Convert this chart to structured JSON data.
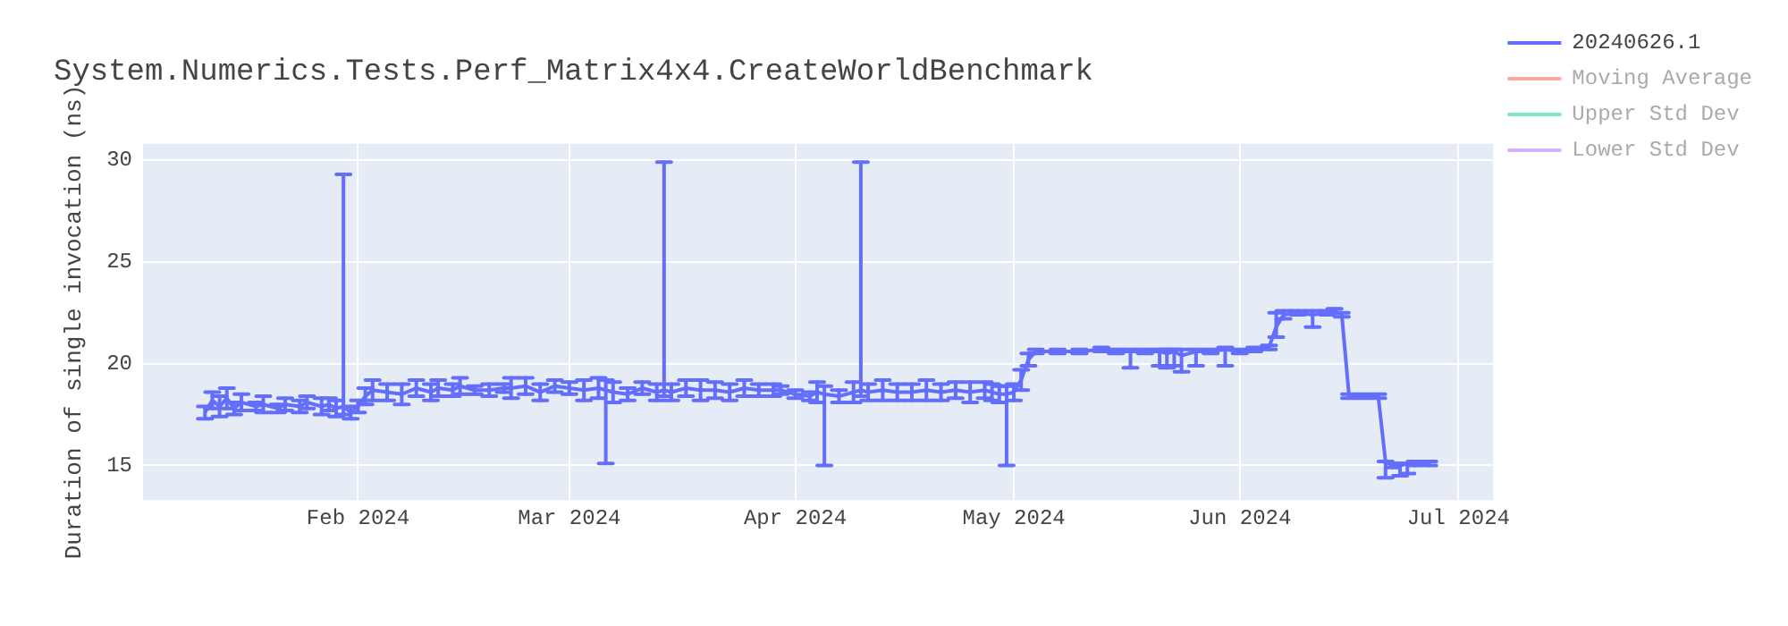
{
  "chart_data": {
    "type": "line",
    "title": "System.Numerics.Tests.Perf_Matrix4x4.CreateWorldBenchmark",
    "ylabel": "Duration of single invocation (ns)",
    "xlim": [
      "2024-01-02T12:00",
      "2024-07-05T19:00"
    ],
    "ylim": [
      13.3,
      30.8
    ],
    "yticks": [
      15,
      20,
      25,
      30
    ],
    "xticks": [
      {
        "value": "2024-02-01",
        "label": "Feb 2024"
      },
      {
        "value": "2024-03-01",
        "label": "Mar 2024"
      },
      {
        "value": "2024-04-01",
        "label": "Apr 2024"
      },
      {
        "value": "2024-05-01",
        "label": "May 2024"
      },
      {
        "value": "2024-06-01",
        "label": "Jun 2024"
      },
      {
        "value": "2024-07-01",
        "label": "Jul 2024"
      }
    ],
    "grid": true,
    "legend": "top right",
    "series": [
      {
        "name": "20240626.1",
        "color": "#636efa",
        "x": [
          "2024-01-11",
          "2024-01-12",
          "2024-01-13",
          "2024-01-14",
          "2024-01-15",
          "2024-01-16",
          "2024-01-18",
          "2024-01-19",
          "2024-01-21",
          "2024-01-22",
          "2024-01-24",
          "2024-01-25",
          "2024-01-27",
          "2024-01-28",
          "2024-01-29",
          "2024-01-30",
          "2024-01-31",
          "2024-02-01",
          "2024-02-02",
          "2024-02-03",
          "2024-02-05",
          "2024-02-07",
          "2024-02-09",
          "2024-02-11",
          "2024-02-12",
          "2024-02-14",
          "2024-02-15",
          "2024-02-17",
          "2024-02-19",
          "2024-02-21",
          "2024-02-22",
          "2024-02-24",
          "2024-02-26",
          "2024-02-28",
          "2024-03-01",
          "2024-03-03",
          "2024-03-05",
          "2024-03-06",
          "2024-03-07",
          "2024-03-09",
          "2024-03-11",
          "2024-03-13",
          "2024-03-14",
          "2024-03-15",
          "2024-03-17",
          "2024-03-19",
          "2024-03-21",
          "2024-03-23",
          "2024-03-25",
          "2024-03-27",
          "2024-03-29",
          "2024-03-30",
          "2024-04-01",
          "2024-04-03",
          "2024-04-04",
          "2024-04-05",
          "2024-04-07",
          "2024-04-09",
          "2024-04-10",
          "2024-04-11",
          "2024-04-13",
          "2024-04-15",
          "2024-04-17",
          "2024-04-19",
          "2024-04-21",
          "2024-04-23",
          "2024-04-25",
          "2024-04-27",
          "2024-04-28",
          "2024-04-29",
          "2024-04-30",
          "2024-05-01",
          "2024-05-02",
          "2024-05-03",
          "2024-05-04",
          "2024-05-07",
          "2024-05-10",
          "2024-05-13",
          "2024-05-15",
          "2024-05-17",
          "2024-05-19",
          "2024-05-21",
          "2024-05-22",
          "2024-05-23",
          "2024-05-24",
          "2024-05-26",
          "2024-05-28",
          "2024-05-30",
          "2024-06-01",
          "2024-06-03",
          "2024-06-05",
          "2024-06-06",
          "2024-06-07",
          "2024-06-09",
          "2024-06-11",
          "2024-06-13",
          "2024-06-14",
          "2024-06-15",
          "2024-06-16",
          "2024-06-18",
          "2024-06-20",
          "2024-06-21",
          "2024-06-22",
          "2024-06-23",
          "2024-06-24",
          "2024-06-25",
          "2024-06-27"
        ],
        "values": [
          17.6,
          18.2,
          17.9,
          18.3,
          17.8,
          18.1,
          17.9,
          18.0,
          17.8,
          18.0,
          17.9,
          18.1,
          17.9,
          18.0,
          17.8,
          17.9,
          17.6,
          17.9,
          18.4,
          18.7,
          18.6,
          18.5,
          18.8,
          18.6,
          18.8,
          18.7,
          18.9,
          18.7,
          18.7,
          18.8,
          18.8,
          18.9,
          18.6,
          18.9,
          18.8,
          18.7,
          18.8,
          18.7,
          18.6,
          18.5,
          18.8,
          18.6,
          18.7,
          18.6,
          18.8,
          18.7,
          18.7,
          18.6,
          18.8,
          18.7,
          18.7,
          18.7,
          18.5,
          18.4,
          18.6,
          18.5,
          18.4,
          18.6,
          18.7,
          18.6,
          18.7,
          18.6,
          18.6,
          18.7,
          18.6,
          18.7,
          18.6,
          18.7,
          18.6,
          18.5,
          18.5,
          18.6,
          19.2,
          20.2,
          20.6,
          20.6,
          20.6,
          20.7,
          20.6,
          20.6,
          20.6,
          20.6,
          20.5,
          20.6,
          20.4,
          20.6,
          20.6,
          20.7,
          20.6,
          20.7,
          20.8,
          21.8,
          22.4,
          22.5,
          22.4,
          22.5,
          22.6,
          22.4,
          18.4,
          18.4,
          18.4,
          15.2,
          15.0,
          15.0,
          15.1,
          15.1,
          15.1
        ],
        "errors": [
          0.3,
          0.4,
          0.5,
          0.5,
          0.3,
          0.4,
          0.2,
          0.4,
          0.2,
          0.3,
          0.3,
          0.3,
          0.4,
          0.3,
          0.4,
          [
            17.5,
            29.3
          ],
          0.3,
          0.3,
          0.4,
          0.5,
          0.4,
          0.5,
          0.4,
          0.4,
          0.4,
          0.3,
          0.4,
          0.2,
          0.3,
          0.2,
          0.5,
          0.4,
          0.4,
          0.3,
          0.3,
          0.5,
          0.5,
          [
            15.1,
            19.2
          ],
          0.5,
          0.3,
          0.3,
          0.4,
          [
            18.4,
            29.9
          ],
          0.4,
          0.4,
          0.5,
          0.4,
          0.4,
          0.4,
          0.3,
          0.3,
          0.2,
          0.2,
          0.2,
          0.5,
          [
            15.0,
            18.9
          ],
          0.3,
          0.5,
          [
            18.4,
            29.9
          ],
          0.4,
          0.5,
          0.4,
          0.4,
          0.5,
          0.4,
          0.4,
          0.5,
          0.4,
          0.4,
          0.4,
          [
            15.0,
            18.9
          ],
          0.4,
          0.5,
          0.3,
          0.1,
          0.1,
          0.1,
          0.1,
          0.1,
          [
            19.8,
            20.7
          ],
          0.1,
          [
            19.9,
            20.7
          ],
          [
            19.8,
            20.7
          ],
          [
            19.9,
            20.7
          ],
          [
            19.6,
            20.7
          ],
          [
            19.9,
            20.7
          ],
          0.1,
          [
            19.9,
            20.8
          ],
          0.1,
          0.1,
          0.1,
          [
            21.3,
            22.5
          ],
          0.2,
          0.1,
          [
            21.8,
            22.6
          ],
          0.1,
          0.1,
          0.1,
          0.1,
          0.1,
          0.1,
          [
            14.4,
            15.2
          ],
          0.1,
          [
            14.5,
            15.1
          ],
          [
            14.6,
            15.1
          ],
          0.1,
          0.1
        ]
      },
      {
        "name": "Moving Average",
        "color": "#ef553b"
      },
      {
        "name": "Upper Std Dev",
        "color": "#00cc96"
      },
      {
        "name": "Lower Std Dev",
        "color": "#ab63fa"
      }
    ]
  }
}
